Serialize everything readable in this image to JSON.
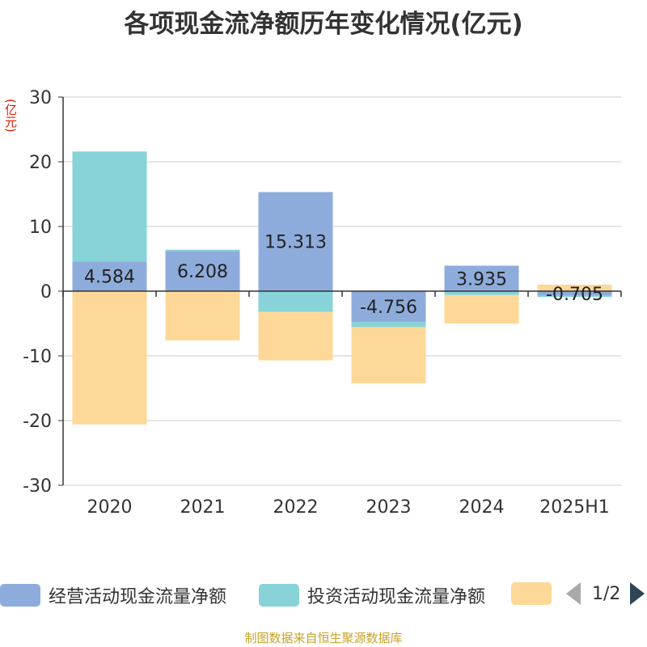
{
  "title": "各项现金流净额历年变化情况(亿元)",
  "unit_label": "(亿元)",
  "source": "制图数据来自恒生聚源数据库",
  "legend": {
    "items": [
      {
        "label": "经营活动现金流量净额",
        "color": "#8eacdb"
      },
      {
        "label": "投资活动现金流量净额",
        "color": "#87d3d7"
      },
      {
        "label": "",
        "color": "#fdd898"
      }
    ],
    "page": "1/2"
  },
  "chart_data": {
    "type": "bar",
    "stacked": true,
    "categories": [
      "2020",
      "2021",
      "2022",
      "2023",
      "2024",
      "2025H1"
    ],
    "ylim": [
      -30,
      30
    ],
    "yticks": [
      30,
      20,
      10,
      0,
      -10,
      -20,
      -30
    ],
    "grid": true,
    "legend_position": "bottom",
    "series": [
      {
        "name": "经营活动现金流量净额",
        "color": "#8eacdb",
        "values": [
          4.584,
          6.208,
          15.313,
          -4.756,
          3.935,
          -0.705
        ],
        "labels": [
          "4.584",
          "6.208",
          "15.313",
          "-4.756",
          "3.935",
          "-0.705"
        ]
      },
      {
        "name": "投资活动现金流量净额",
        "color": "#87d3d7",
        "values": [
          17.0,
          0.2,
          -3.2,
          -0.8,
          -0.6,
          -0.2
        ]
      },
      {
        "color": "#fdd898",
        "values": [
          -20.6,
          -7.6,
          -7.5,
          -8.7,
          -4.4,
          1.0
        ]
      }
    ]
  }
}
